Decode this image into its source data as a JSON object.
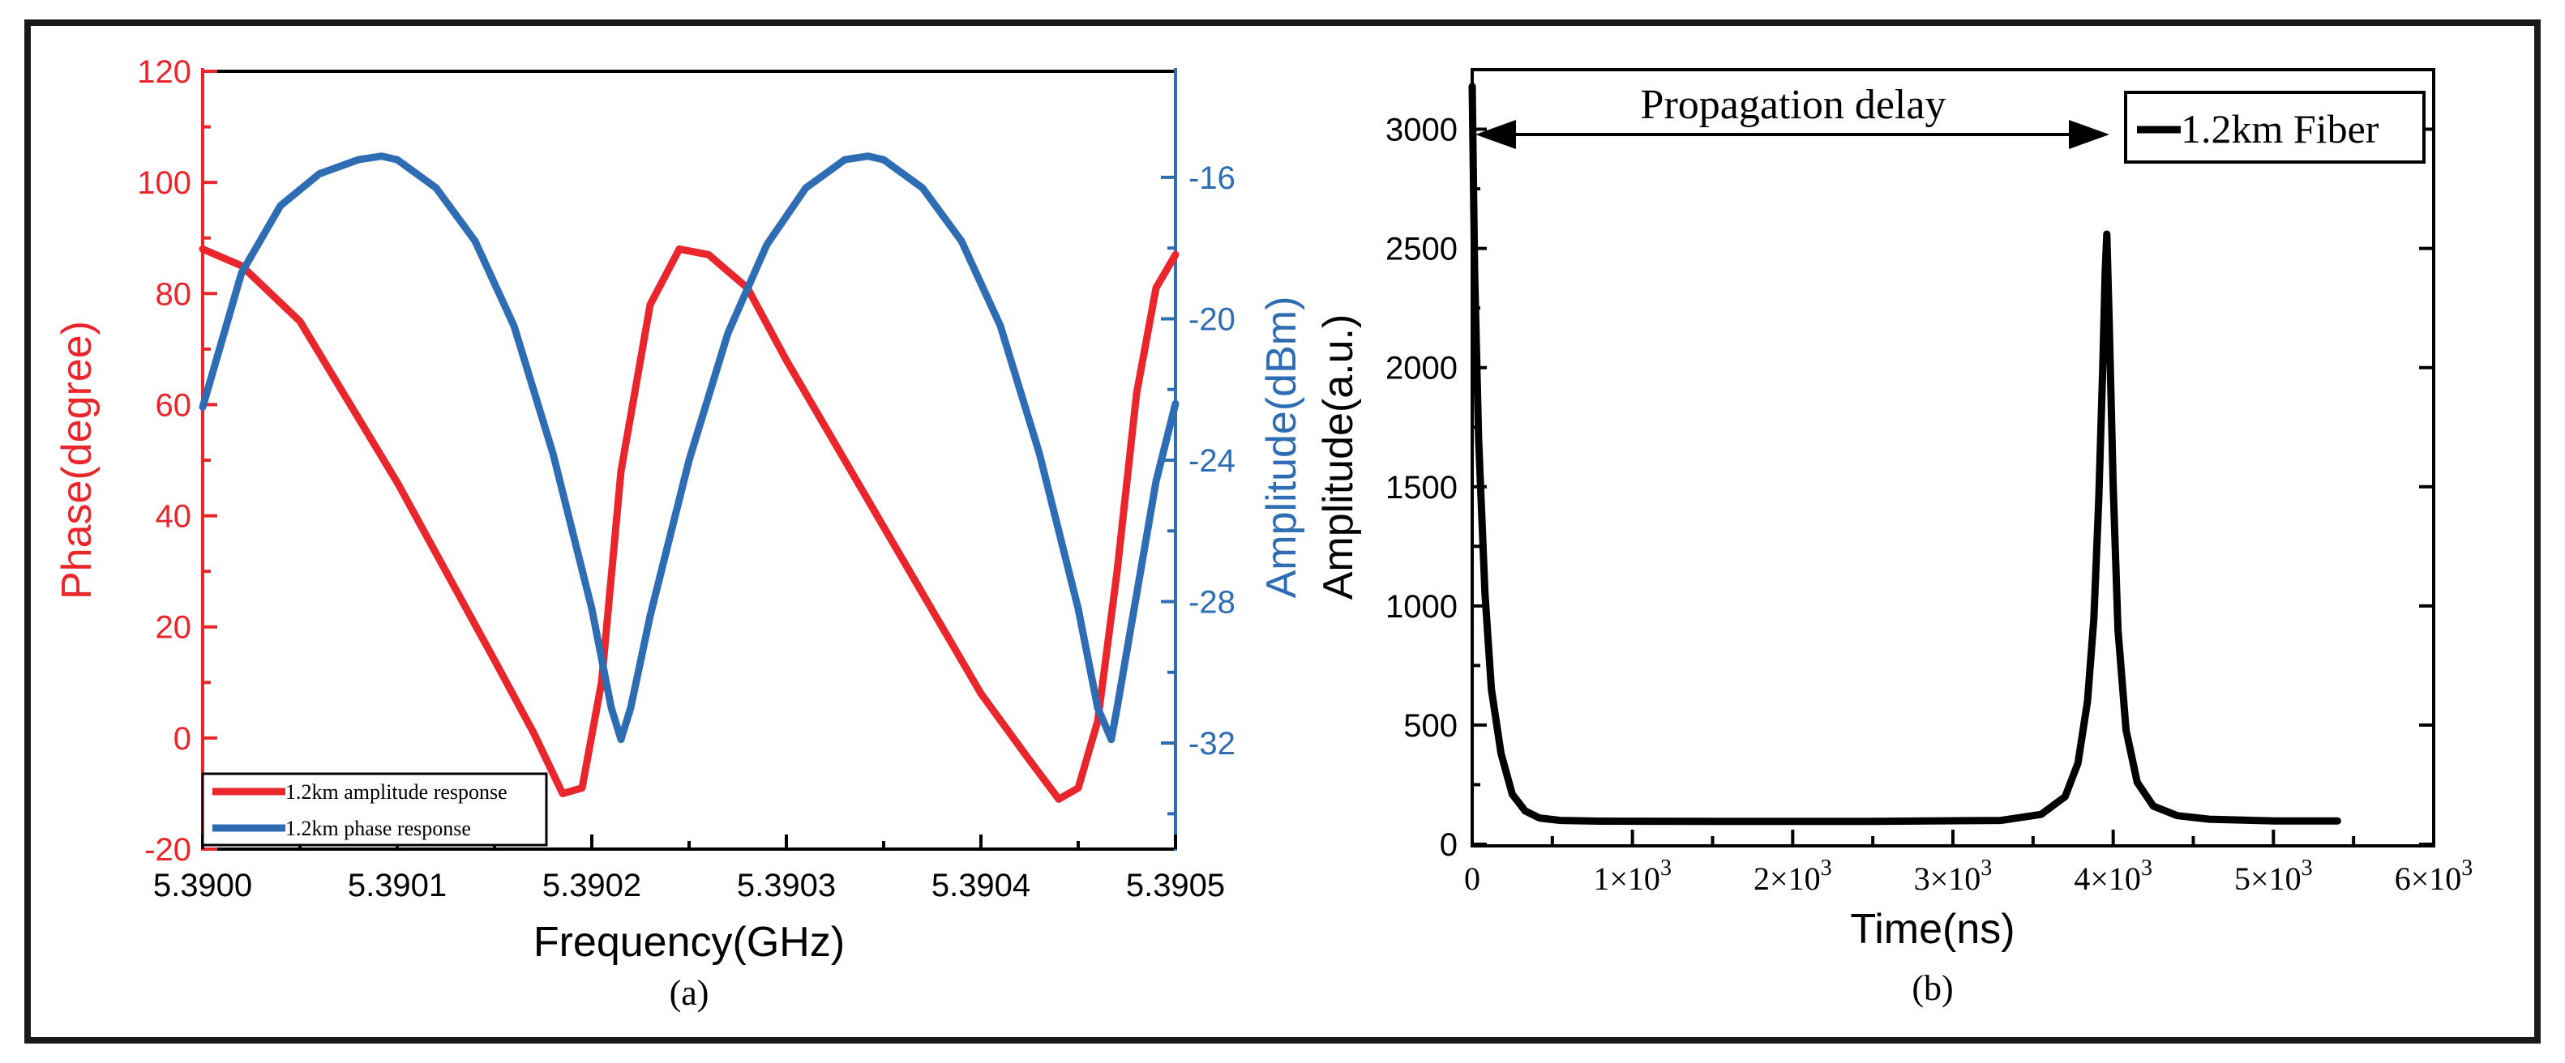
{
  "colors": {
    "red": "#e8262b",
    "blue": "#2e6db4",
    "black": "#000000",
    "frame": "#1a1a1a"
  },
  "chart_data": [
    {
      "type": "line",
      "caption": "(a)",
      "xlabel": "Frequency(GHz)",
      "ylabel_left": "Phase(degree)",
      "ylabel_right": "Amplitude(dBm)",
      "xlim": [
        5.39,
        5.3905
      ],
      "ylim_left": [
        -20,
        120
      ],
      "ylim_right": [
        -35,
        -13
      ],
      "x_ticks": [
        "5.3900",
        "5.3901",
        "5.3902",
        "5.3903",
        "5.3904",
        "5.3905"
      ],
      "y_left_ticks": [
        "-20",
        "0",
        "20",
        "40",
        "60",
        "80",
        "100",
        "120"
      ],
      "y_right_ticks": [
        "-16",
        "-20",
        "-24",
        "-28",
        "-32"
      ],
      "legend": [
        "1.2km amplitude response",
        "1.2km phase response"
      ],
      "series": [
        {
          "name": "1.2km amplitude response",
          "axis": "left",
          "x": [
            5.39,
            5.39002,
            5.39005,
            5.3901,
            5.39015,
            5.39017,
            5.390185,
            5.390195,
            5.390205,
            5.390215,
            5.39023,
            5.390245,
            5.39026,
            5.39028,
            5.3903,
            5.39035,
            5.3904,
            5.390425,
            5.39044,
            5.39045,
            5.39046,
            5.39047,
            5.39048,
            5.39049,
            5.3905
          ],
          "values": [
            88,
            85,
            75,
            46,
            14,
            1,
            -10,
            -9,
            10,
            48,
            78,
            88,
            87,
            81,
            68,
            38,
            8,
            -4,
            -11,
            -9,
            3,
            30,
            62,
            81,
            87
          ]
        },
        {
          "name": "1.2km phase response",
          "axis": "right",
          "x": [
            5.39,
            5.39002,
            5.39004,
            5.39006,
            5.39008,
            5.390092,
            5.3901,
            5.39012,
            5.39014,
            5.39016,
            5.39018,
            5.3902,
            5.39021,
            5.390215,
            5.39022,
            5.39023,
            5.39025,
            5.39027,
            5.39029,
            5.39031,
            5.39033,
            5.390342,
            5.39035,
            5.39037,
            5.39039,
            5.39041,
            5.39043,
            5.39045,
            5.39046,
            5.390467,
            5.39047,
            5.39048,
            5.39049,
            5.3905
          ],
          "values": [
            -22.5,
            -18.7,
            -16.8,
            -15.9,
            -15.5,
            -15.4,
            -15.5,
            -16.3,
            -17.8,
            -20.2,
            -23.8,
            -28.2,
            -31.0,
            -31.9,
            -31.0,
            -28.4,
            -24.0,
            -20.4,
            -17.9,
            -16.3,
            -15.5,
            -15.4,
            -15.5,
            -16.3,
            -17.8,
            -20.2,
            -23.8,
            -28.2,
            -31.0,
            -31.9,
            -31.0,
            -27.8,
            -24.6,
            -22.4
          ]
        }
      ]
    },
    {
      "type": "line",
      "caption": "(b)",
      "xlabel": "Time(ns)",
      "ylabel": "Amplitude(a.u.)",
      "xlim": [
        0,
        6000
      ],
      "ylim": [
        0,
        3250
      ],
      "x_ticks": [
        {
          "value": 0,
          "base": "0",
          "exp": ""
        },
        {
          "value": 1000,
          "base": "1×10",
          "exp": "3"
        },
        {
          "value": 2000,
          "base": "2×10",
          "exp": "3"
        },
        {
          "value": 3000,
          "base": "3×10",
          "exp": "3"
        },
        {
          "value": 4000,
          "base": "4×10",
          "exp": "3"
        },
        {
          "value": 5000,
          "base": "5×10",
          "exp": "3"
        },
        {
          "value": 6000,
          "base": "6×10",
          "exp": "3"
        }
      ],
      "y_ticks": [
        "0",
        "500",
        "1000",
        "1500",
        "2000",
        "2500",
        "3000"
      ],
      "legend": [
        "1.2km Fiber"
      ],
      "annotation": "Propagation delay",
      "series": [
        {
          "name": "1.2km Fiber",
          "x": [
            0,
            15,
            40,
            80,
            120,
            180,
            250,
            330,
            420,
            550,
            800,
            1500,
            2500,
            3300,
            3550,
            3700,
            3780,
            3840,
            3880,
            3910,
            3935,
            3950,
            3960,
            3975,
            4000,
            4030,
            4080,
            4150,
            4250,
            4400,
            4600,
            5000,
            5400
          ],
          "values": [
            3180,
            2400,
            1700,
            1050,
            650,
            380,
            210,
            140,
            110,
            100,
            97,
            96,
            96,
            100,
            125,
            200,
            340,
            600,
            950,
            1450,
            2000,
            2400,
            2560,
            2200,
            1500,
            900,
            480,
            260,
            160,
            120,
            105,
            98,
            98
          ]
        }
      ]
    }
  ]
}
